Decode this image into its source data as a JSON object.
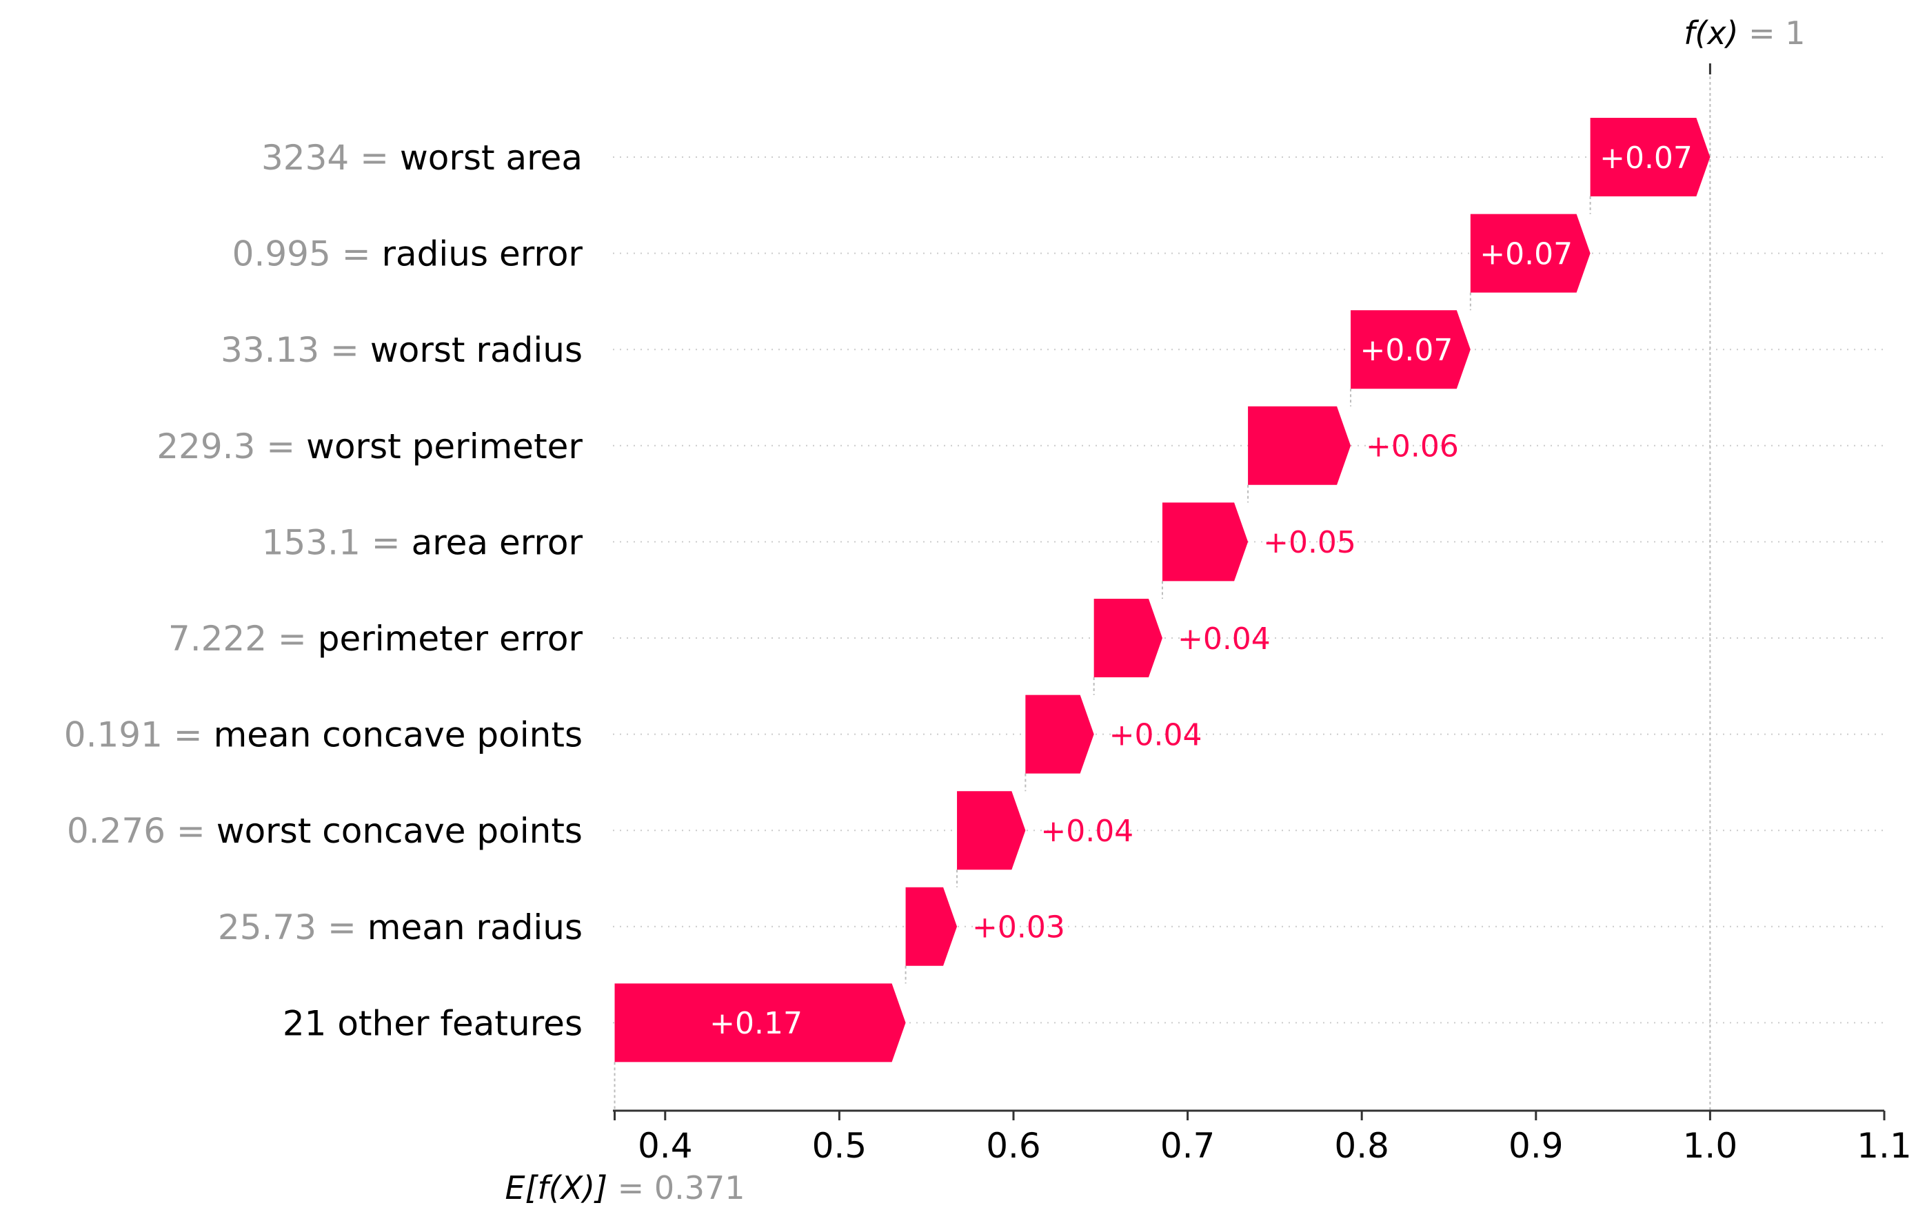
{
  "chart_data": {
    "type": "waterfall",
    "base_value": 0.371,
    "base_label": "E[f(X)]",
    "base_value_text": "0.371",
    "output_value": 1,
    "output_label": "f(x)",
    "output_value_text": "1",
    "xlim": [
      0.37,
      1.1
    ],
    "xticks": [
      0.4,
      0.5,
      0.6,
      0.7,
      0.8,
      0.9,
      1.0,
      1.1
    ],
    "xtick_labels": [
      "0.4",
      "0.5",
      "0.6",
      "0.7",
      "0.8",
      "0.9",
      "1.0",
      "1.1"
    ],
    "positive_color": "#ff0051",
    "label_inside_color": "#ffffff",
    "feature_value_color": "#999999",
    "feature_name_color": "#000000",
    "features": [
      {
        "value": "3234",
        "name": "worst area",
        "contribution": 0.07,
        "label": "+0.07"
      },
      {
        "value": "0.995",
        "name": "radius error",
        "contribution": 0.07,
        "label": "+0.07"
      },
      {
        "value": "33.13",
        "name": "worst radius",
        "contribution": 0.07,
        "label": "+0.07"
      },
      {
        "value": "229.3",
        "name": "worst perimeter",
        "contribution": 0.06,
        "label": "+0.06"
      },
      {
        "value": "153.1",
        "name": "area error",
        "contribution": 0.05,
        "label": "+0.05"
      },
      {
        "value": "7.222",
        "name": "perimeter error",
        "contribution": 0.04,
        "label": "+0.04"
      },
      {
        "value": "0.191",
        "name": "mean concave points",
        "contribution": 0.04,
        "label": "+0.04"
      },
      {
        "value": "0.276",
        "name": "worst concave points",
        "contribution": 0.04,
        "label": "+0.04"
      },
      {
        "value": "25.73",
        "name": "mean radius",
        "contribution": 0.03,
        "label": "+0.03"
      },
      {
        "value": "",
        "name": "21 other features",
        "contribution": 0.17,
        "label": "+0.17"
      }
    ]
  }
}
